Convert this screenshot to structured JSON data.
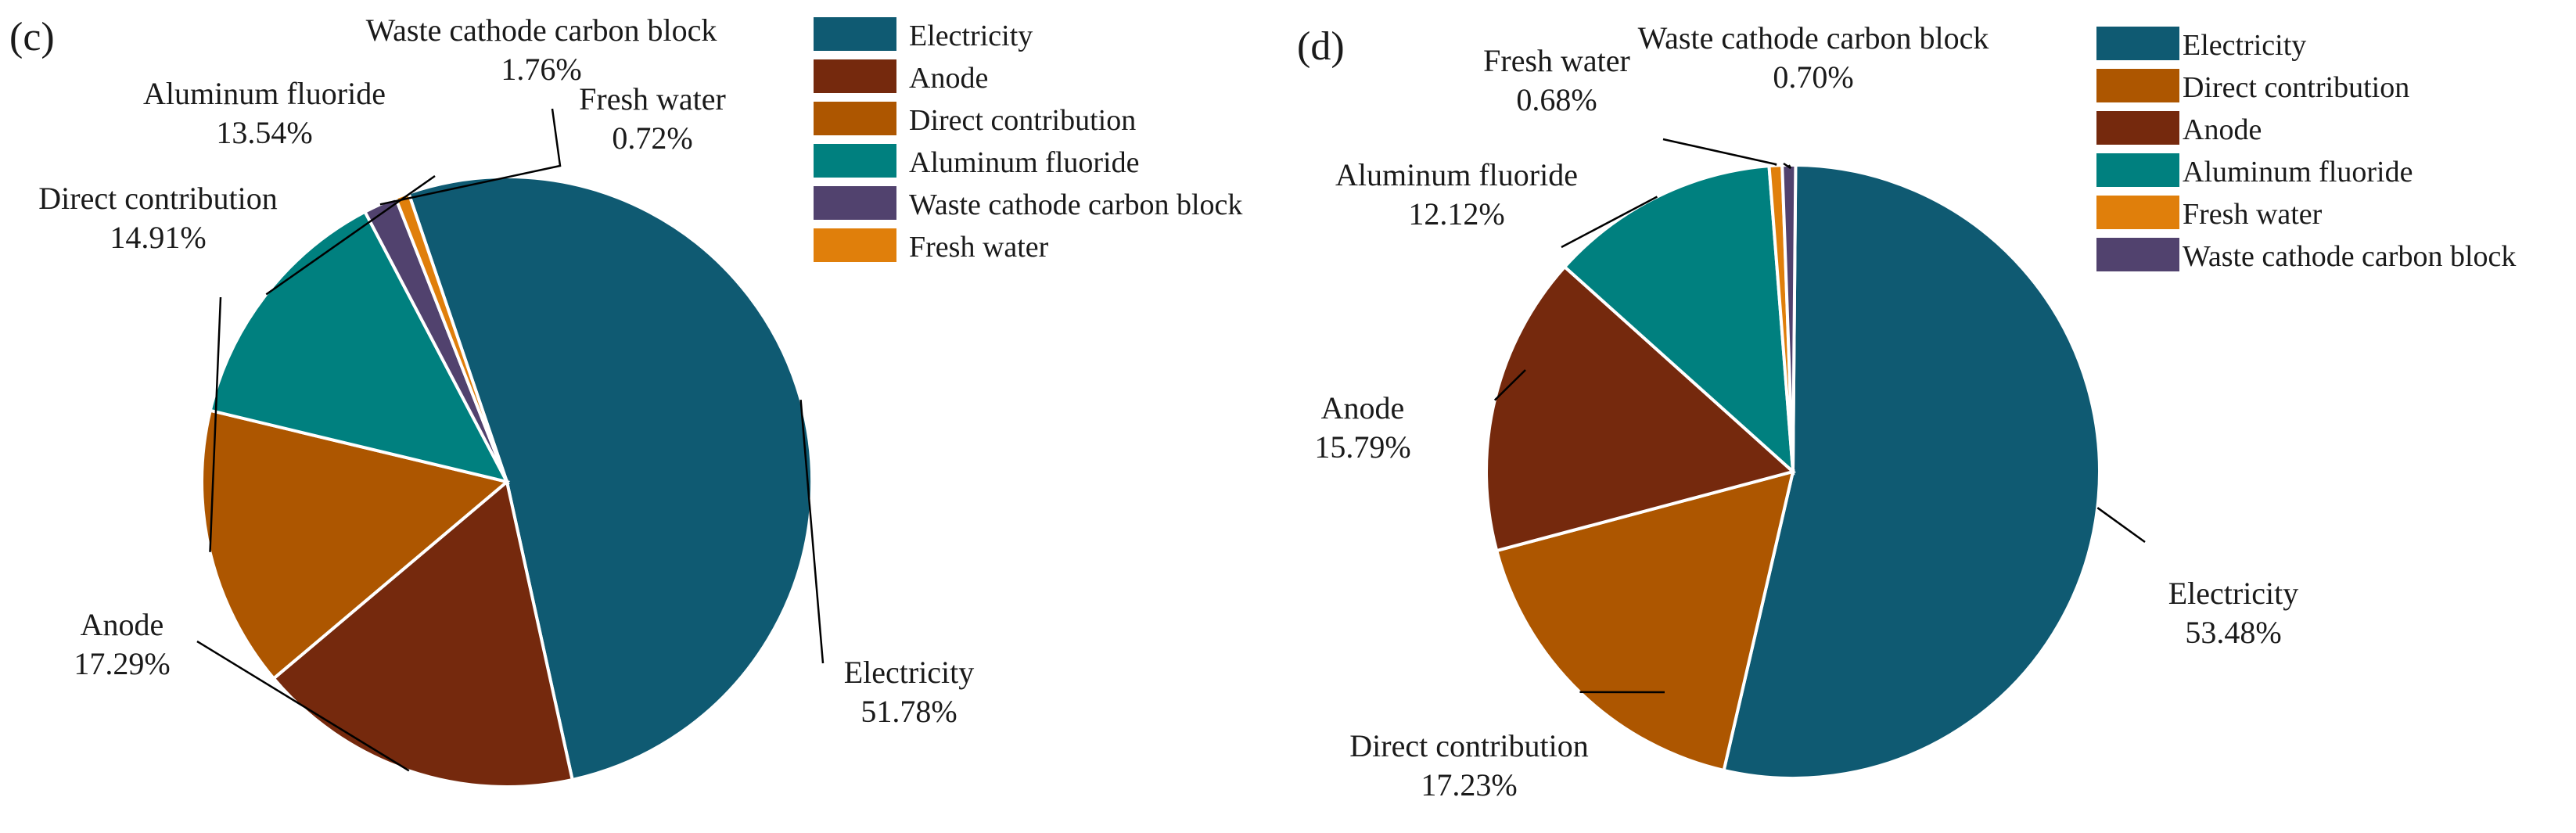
{
  "chart_data": [
    {
      "type": "pie",
      "panel": "(c)",
      "start_angle_deg": 108.8,
      "direction": "clockwise",
      "labels": {
        "electricity": [
          "Electricity",
          "51.78%"
        ],
        "anode": [
          "Anode",
          "17.29%"
        ],
        "direct": [
          "Direct contribution",
          "14.91%"
        ],
        "alf": [
          "Aluminum fluoride",
          "13.54%"
        ],
        "waste": [
          "Waste cathode carbon block",
          "1.76%"
        ],
        "fresh": [
          "Fresh water",
          "0.72%"
        ]
      },
      "slices": [
        {
          "key": "electricity",
          "name": "Electricity",
          "value": 51.78,
          "color": "#0f5a72"
        },
        {
          "key": "anode",
          "name": "Anode",
          "value": 17.29,
          "color": "#75290d"
        },
        {
          "key": "direct",
          "name": "Direct contribution",
          "value": 14.91,
          "color": "#ad5600"
        },
        {
          "key": "alf",
          "name": "Aluminum fluoride",
          "value": 13.54,
          "color": "#00807f"
        },
        {
          "key": "waste",
          "name": "Waste cathode carbon block",
          "value": 1.76,
          "color": "#51426e"
        },
        {
          "key": "fresh",
          "name": "Fresh water",
          "value": 0.72,
          "color": "#e07f0b"
        }
      ],
      "legend": [
        {
          "label": "Electricity",
          "color": "#0f5a72"
        },
        {
          "label": "Anode",
          "color": "#75290d"
        },
        {
          "label": "Direct contribution",
          "color": "#ad5600"
        },
        {
          "label": "Aluminum fluoride",
          "color": "#00807f"
        },
        {
          "label": "Waste cathode carbon block",
          "color": "#51426e"
        },
        {
          "label": "Fresh water",
          "color": "#e07f0b"
        }
      ],
      "legend_placement": "top-right"
    },
    {
      "type": "pie",
      "panel": "(d)",
      "start_angle_deg": 89.5,
      "direction": "clockwise",
      "labels": {
        "electricity": [
          "Electricity",
          "53.48%"
        ],
        "direct": [
          "Direct contribution",
          "17.23%"
        ],
        "anode": [
          "Anode",
          "15.79%"
        ],
        "alf": [
          "Aluminum fluoride",
          "12.12%"
        ],
        "fresh": [
          "Fresh water",
          "0.68%"
        ],
        "waste": [
          "Waste cathode carbon block",
          "0.70%"
        ]
      },
      "slices": [
        {
          "key": "electricity",
          "name": "Electricity",
          "value": 53.48,
          "color": "#0f5a72"
        },
        {
          "key": "direct",
          "name": "Direct contribution",
          "value": 17.23,
          "color": "#ad5600"
        },
        {
          "key": "anode",
          "name": "Anode",
          "value": 15.79,
          "color": "#75290d"
        },
        {
          "key": "alf",
          "name": "Aluminum fluoride",
          "value": 12.12,
          "color": "#00807f"
        },
        {
          "key": "fresh",
          "name": "Fresh water",
          "value": 0.68,
          "color": "#e07f0b"
        },
        {
          "key": "waste",
          "name": "Waste cathode carbon block",
          "value": 0.7,
          "color": "#51426e"
        }
      ],
      "legend": [
        {
          "label": "Electricity",
          "color": "#0f5a72"
        },
        {
          "label": "Direct contribution",
          "color": "#ad5600"
        },
        {
          "label": "Anode",
          "color": "#75290d"
        },
        {
          "label": "Aluminum fluoride",
          "color": "#00807f"
        },
        {
          "label": "Fresh water",
          "color": "#e07f0b"
        },
        {
          "label": "Waste cathode carbon block",
          "color": "#51426e"
        }
      ],
      "legend_placement": "top-right"
    }
  ]
}
